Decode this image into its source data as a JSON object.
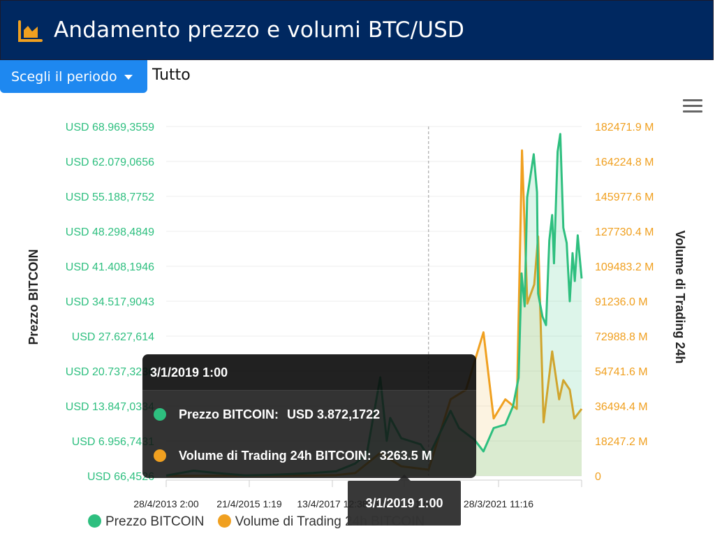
{
  "header": {
    "title": "Andamento prezzo e volumi BTC/USD",
    "icon": "area-chart-icon"
  },
  "controls": {
    "period_button_label": "Scegli il periodo",
    "period_value": "Tutto"
  },
  "colors": {
    "header_bg": "#002860",
    "button_bg": "#1e88f0",
    "price": "#2ebf7f",
    "volume": "#f0a020"
  },
  "chart_data": {
    "type": "line",
    "left_axis": {
      "title": "Prezzo BITCOIN",
      "ticks": [
        "USD 66,4526",
        "USD 6.956,7431",
        "USD 13.847,0334",
        "USD 20.737,3236",
        "USD 27.627,614",
        "USD 34.517,9043",
        "USD 41.408,1946",
        "USD 48.298,4849",
        "USD 55.188,7752",
        "USD 62.079,0656",
        "USD 68.969,3559"
      ],
      "range": [
        66.4526,
        68969.3559
      ]
    },
    "right_axis": {
      "title": "Volume di Trading 24h",
      "ticks": [
        "0",
        "18247.2 M",
        "36494.4 M",
        "54741.6 M",
        "72988.8 M",
        "91236.0 M",
        "109483.2 M",
        "127730.4 M",
        "145977.6 M",
        "164224.8 M",
        "182471.9 M"
      ],
      "range": [
        0,
        182471.9
      ]
    },
    "x_axis": {
      "ticks": [
        "28/4/2013 2:00",
        "21/4/2015 1:19",
        "13/4/2017 12:38",
        "3/1/2019 1:00",
        "28/3/2021 11:16"
      ],
      "range": [
        "2013-04-28",
        "2022-04-28"
      ]
    },
    "series": [
      {
        "name": "Prezzo BITCOIN",
        "axis": "left",
        "x": [
          "2013-04-28",
          "2013-11-30",
          "2014-06-01",
          "2015-01-14",
          "2015-08-01",
          "2016-01-01",
          "2016-07-01",
          "2017-01-01",
          "2017-06-01",
          "2017-09-01",
          "2017-12-17",
          "2018-02-06",
          "2018-03-05",
          "2018-06-01",
          "2018-11-01",
          "2019-01-03",
          "2019-06-26",
          "2019-09-01",
          "2020-01-01",
          "2020-03-12",
          "2020-06-01",
          "2020-09-01",
          "2020-11-01",
          "2020-12-15",
          "2021-01-08",
          "2021-02-01",
          "2021-02-21",
          "2021-04-14",
          "2021-05-10",
          "2021-05-19",
          "2021-06-22",
          "2021-07-20",
          "2021-08-15",
          "2021-09-07",
          "2021-09-21",
          "2021-10-20",
          "2021-11-10",
          "2021-12-04",
          "2021-12-31",
          "2022-01-24",
          "2022-02-15",
          "2022-03-05",
          "2022-03-28",
          "2022-04-28"
        ],
        "values": [
          130,
          1100,
          630,
          180,
          280,
          430,
          650,
          980,
          2500,
          4400,
          19500,
          7000,
          11500,
          7500,
          6300,
          3872.17,
          12900,
          9500,
          7200,
          4900,
          9500,
          10200,
          13800,
          19400,
          40000,
          33500,
          55000,
          63500,
          56000,
          36000,
          31500,
          29800,
          46500,
          51500,
          42000,
          64000,
          67500,
          49000,
          46000,
          34500,
          44000,
          38500,
          47500,
          39000
        ]
      },
      {
        "name": "Volume di Trading 24h BITCOIN",
        "axis": "right",
        "x": [
          "2013-04-28",
          "2014-06-01",
          "2015-06-01",
          "2016-06-01",
          "2017-01-01",
          "2017-06-01",
          "2017-12-17",
          "2018-06-01",
          "2019-01-03",
          "2019-06-26",
          "2019-10-26",
          "2020-03-12",
          "2020-06-01",
          "2020-09-01",
          "2020-12-01",
          "2021-01-11",
          "2021-02-22",
          "2021-04-18",
          "2021-05-19",
          "2021-07-01",
          "2021-09-07",
          "2021-11-01",
          "2021-12-04",
          "2022-01-24",
          "2022-03-01",
          "2022-04-28"
        ],
        "values": [
          30,
          70,
          150,
          200,
          400,
          1500,
          12000,
          5000,
          3263.5,
          40000,
          45000,
          75000,
          30000,
          40000,
          35000,
          170000,
          90000,
          100000,
          125000,
          28000,
          65000,
          40000,
          50000,
          45000,
          30000,
          35000
        ]
      }
    ],
    "tooltip": {
      "date": "3/1/2019 1:00",
      "rows": [
        {
          "label": "Prezzo BITCOIN:",
          "value": "USD 3.872,1722"
        },
        {
          "label": "Volume di Trading 24h BITCOIN:",
          "value": "3263.5 M"
        }
      ]
    },
    "crosshair_label": "3/1/2019 1:00",
    "legend": [
      "Prezzo BITCOIN",
      "Volume di Trading 24h BITCOIN"
    ],
    "grid": true,
    "legend_position": "bottom-left"
  }
}
